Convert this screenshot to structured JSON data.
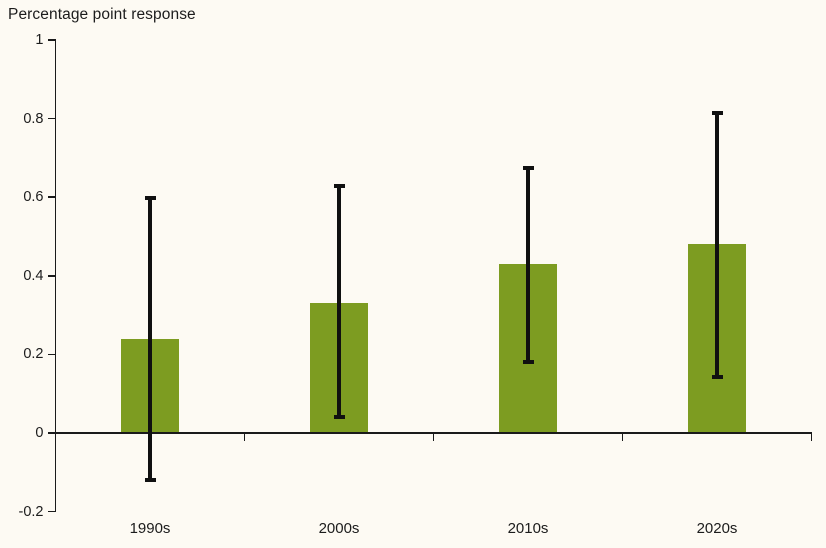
{
  "chart_data": {
    "type": "bar",
    "title": "Percentage point response",
    "categories": [
      "1990s",
      "2000s",
      "2010s",
      "2020s"
    ],
    "values": [
      0.24,
      0.33,
      0.43,
      0.48
    ],
    "error_low": [
      -0.12,
      0.04,
      0.18,
      0.14
    ],
    "error_high": [
      0.6,
      0.63,
      0.675,
      0.815
    ],
    "xlabel": "",
    "ylabel": "",
    "ylim": [
      -0.2,
      1
    ],
    "ytick_labels": [
      "1",
      "0.8",
      "0.6",
      "0.4",
      "0.2",
      "0",
      "-0.2"
    ],
    "ytick_values": [
      1,
      0.8,
      0.6,
      0.4,
      0.2,
      0,
      -0.2
    ],
    "grid": false,
    "legend": false,
    "bar_color": "#7d9c21",
    "errorbar_color": "#101010",
    "axis_color": "#1a1a1a",
    "text_color": "#1c1c1c",
    "background_color": "#fdfaf3"
  }
}
